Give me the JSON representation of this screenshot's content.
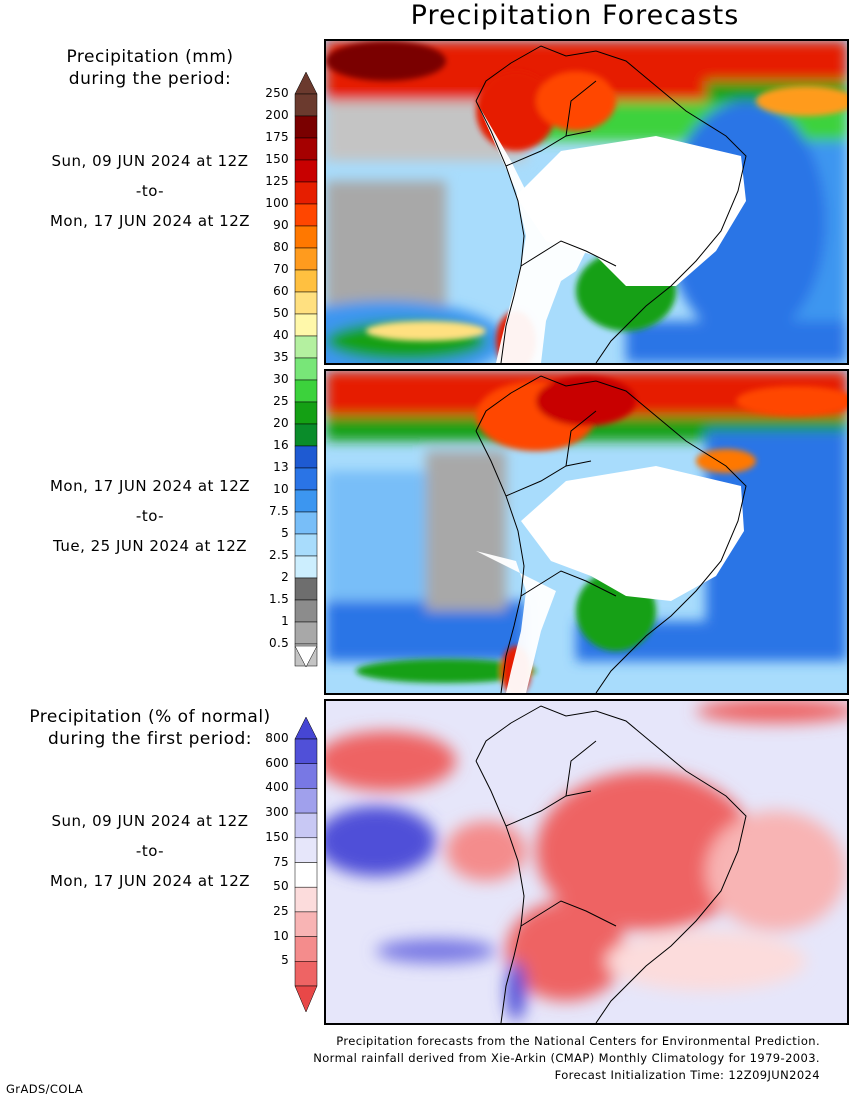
{
  "title": "Precipitation Forecasts",
  "amount_header": [
    "Precipitation (mm)",
    "during the period:"
  ],
  "percent_header": [
    "Precipitation (% of normal)",
    "during the first period:"
  ],
  "period1": {
    "start": "Sun, 09 JUN 2024 at 12Z",
    "sep": "-to-",
    "end": "Mon, 17 JUN 2024 at 12Z"
  },
  "period2": {
    "start": "Mon, 17 JUN 2024 at 12Z",
    "sep": "-to-",
    "end": "Tue, 25 JUN 2024 at 12Z"
  },
  "period3": {
    "start": "Sun, 09 JUN 2024 at 12Z",
    "sep": "-to-",
    "end": "Mon, 17 JUN 2024 at 12Z"
  },
  "amount_scale": {
    "labels": [
      "250",
      "200",
      "175",
      "150",
      "125",
      "100",
      "90",
      "80",
      "70",
      "60",
      "50",
      "40",
      "35",
      "30",
      "25",
      "20",
      "16",
      "13",
      "10",
      "7.5",
      "5",
      "2.5",
      "2",
      "1.5",
      "1",
      "0.5"
    ],
    "colors": [
      "#6b3a2e",
      "#7a0000",
      "#a50000",
      "#c80000",
      "#e61e00",
      "#ff4600",
      "#ff7800",
      "#ff9b1e",
      "#ffc040",
      "#ffe080",
      "#fff8aa",
      "#b4f0a0",
      "#78e678",
      "#3cd23c",
      "#14a014",
      "#0a8c2a",
      "#1e5ad2",
      "#2a74e6",
      "#3c96f0",
      "#78bef8",
      "#a8dcfc",
      "#cceefe",
      "#6e6e6e",
      "#8c8c8c",
      "#a8a8a8",
      "#c4c4c4"
    ],
    "top_cap": "#6b3a2e",
    "bottom_cap": "#ffffff"
  },
  "percent_scale": {
    "labels": [
      "800",
      "600",
      "400",
      "300",
      "150",
      "75",
      "50",
      "25",
      "10",
      "5"
    ],
    "colors": [
      "#5050d8",
      "#7878e4",
      "#a0a0ec",
      "#c8c8f4",
      "#e6e6fa",
      "#ffffff",
      "#fcdcdc",
      "#f8b4b4",
      "#f48c8c",
      "#ee6464"
    ],
    "top_cap": "#4646d4",
    "bottom_cap": "#e84848"
  },
  "footer": [
    "Precipitation forecasts from the National Centers for Environmental Prediction.",
    "Normal rainfall derived from Xie-Arkin (CMAP) Monthly Climatology for 1979-2003.",
    "Forecast Initialization Time: 12Z09JUN2024"
  ],
  "credit": "GrADS/COLA",
  "land_fill": "#ffffff",
  "border_color": "#000000"
}
